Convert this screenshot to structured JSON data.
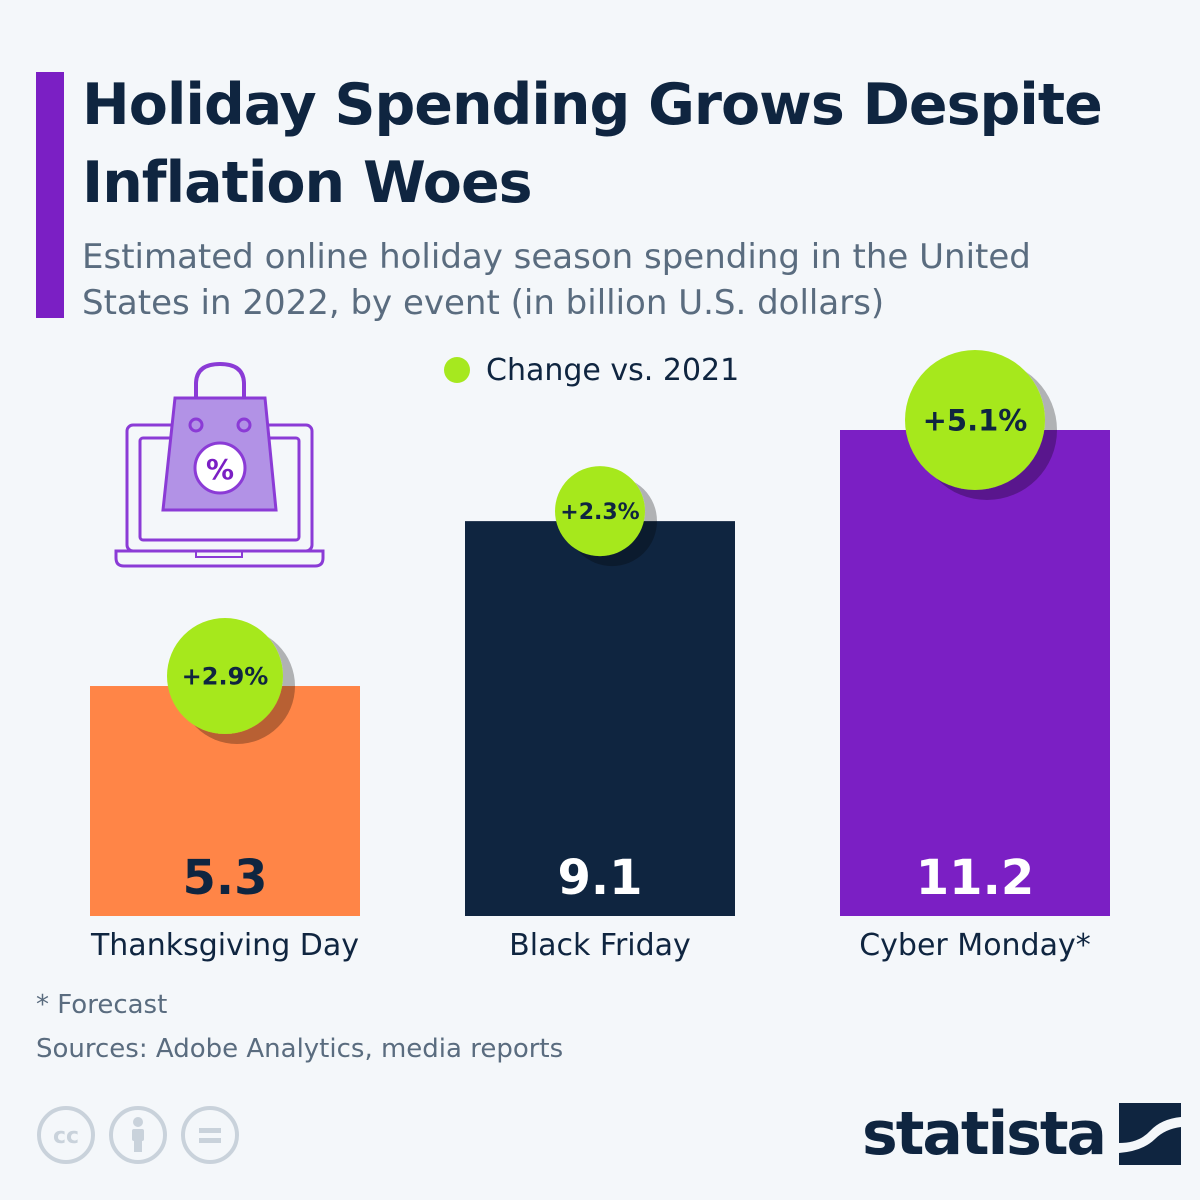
{
  "header": {
    "title": "Holiday Spending Grows Despite Inflation Woes",
    "subtitle": "Estimated online holiday season spending in the United States in 2022, by event (in billion U.S. dollars)"
  },
  "legend": {
    "label": "Change vs. 2021"
  },
  "chart_data": {
    "type": "bar",
    "title": "Holiday Spending Grows Despite Inflation Woes",
    "subtitle": "Estimated online holiday season spending in the United States in 2022, by event (in billion U.S. dollars)",
    "categories": [
      "Thanksgiving Day",
      "Black Friday",
      "Cyber Monday*"
    ],
    "values": [
      5.3,
      9.1,
      11.2
    ],
    "value_labels": [
      "5.3",
      "9.1",
      "11.2"
    ],
    "change_labels": [
      "+2.9%",
      "+2.3%",
      "+5.1%"
    ],
    "change_values": [
      2.9,
      2.3,
      5.1
    ],
    "legend": [
      "Change vs. 2021"
    ],
    "ylim": [
      0,
      11.2
    ],
    "colors": [
      "#ff8547",
      "#0f2540",
      "#7b1fc4"
    ],
    "value_label_colors": [
      "#0f2540",
      "#ffffff",
      "#ffffff"
    ],
    "change_color": "#a6e81f"
  },
  "footer": {
    "footnote": "* Forecast",
    "sources": "Sources: Adobe Analytics, media reports",
    "brand": "statista",
    "cc_icons": [
      "cc-icon",
      "attribution-icon",
      "no-derivatives-icon"
    ]
  },
  "illustration": {
    "icon": "laptop-shopping-bag-icon",
    "badge": "%"
  }
}
